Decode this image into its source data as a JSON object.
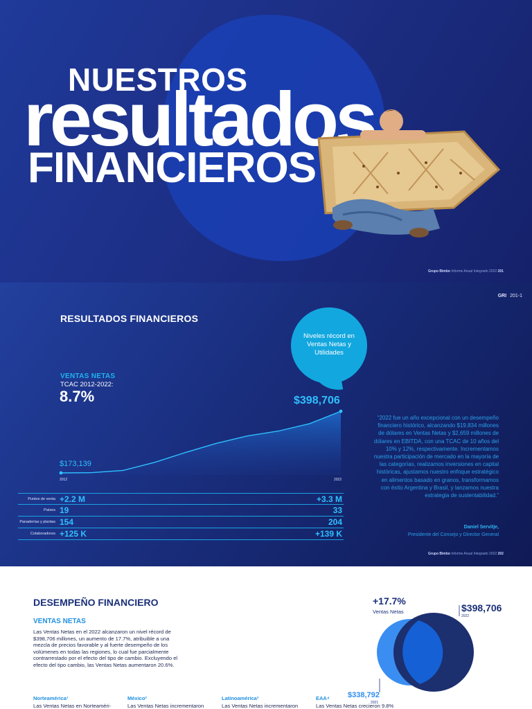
{
  "hero": {
    "line1": "NUESTROS",
    "line2": "resultados",
    "line3": "FINANCIEROS",
    "footer_brand": "Grupo Bimbo",
    "footer_text": "Informe Anual Integrado 2022",
    "page": "201"
  },
  "results": {
    "gri_label": "GRI",
    "gri_code": "201-1",
    "title": "RESULTADOS FINANCIEROS",
    "bubble": "Niveles récord en Ventas Netas y Utilidades",
    "kpi_label": "VENTAS NETAS",
    "kpi_sub": "TCAC 2012-2022:",
    "kpi_value": "8.7%",
    "stats": [
      {
        "label": "Puntos de venta",
        "v2012": "+2.2 M",
        "v2022": "+3.3 M"
      },
      {
        "label": "Países",
        "v2012": "19",
        "v2022": "33"
      },
      {
        "label": "Panaderías y plantas",
        "v2012": "154",
        "v2022": "204"
      },
      {
        "label": "Colaboradores",
        "v2012": "+125 K",
        "v2022": "+139 K"
      }
    ],
    "quote": "“2022 fue un año excepcional con un desempeño financiero histórico, alcanzando $19,834 millones de dólares en Ventas Netas y $2,659 millones de dólares en EBITDA, con una TCAC de 10 años del 10% y 12%, respectivamente. Incrementamos nuestra participación de mercado en la mayoría de las categorías, realizamos inversiones en capital históricas, ajustamos nuestro enfoque estratégico en alimentos basado en granos, transformamos con éxito Argentina y Brasil, y lanzamos nuestra estrategia de sustentabilidad.”",
    "quote_name": "Daniel Servitje,",
    "quote_role": "Presidente del Consejo y Director General",
    "footer_brand": "Grupo Bimbo",
    "footer_text": "Informe Anual Integrado 2022",
    "page": "202"
  },
  "chart_data": {
    "type": "area",
    "x": [
      "2012",
      "2022"
    ],
    "start_label": "$173,139",
    "end_label": "$398,706",
    "values": [
      173139,
      398706
    ],
    "colors": {
      "fill": "#1d6fd0",
      "line": "#2fc0ff"
    }
  },
  "performance": {
    "title": "DESEMPEÑO FINANCIERO",
    "subtitle": "VENTAS NETAS",
    "body": "Las Ventas Netas en el 2022 alcanzaron un nivel récord de $398,706 millones, un aumento de 17.7%, atribuible a una mezcla de precios favorable y al fuerte desempeño de los volúmenes en todas las regiones, lo cual fue parcialmente contrarrestado por el efecto del tipo de cambio. Excluyendo el efecto del tipo cambio, las Ventas Netas aumentaron 20.6%.",
    "growth": "+17.7%",
    "growth_label": "Ventas Netas",
    "value_2022": "$398,706",
    "year_2022": "2022",
    "value_2021": "$338,792",
    "year_2021": "2021",
    "regions": [
      {
        "name": "Norteamérica¹",
        "text": "Las Ventas Netas en Norteaméri-"
      },
      {
        "name": "México²",
        "text": "Las Ventas Netas incrementaron"
      },
      {
        "name": "Latinoamérica³",
        "text": "Las Ventas Netas incrementaron"
      },
      {
        "name": "EAA⁴",
        "text": "Las Ventas Netas crecieron 9.8%"
      }
    ]
  }
}
